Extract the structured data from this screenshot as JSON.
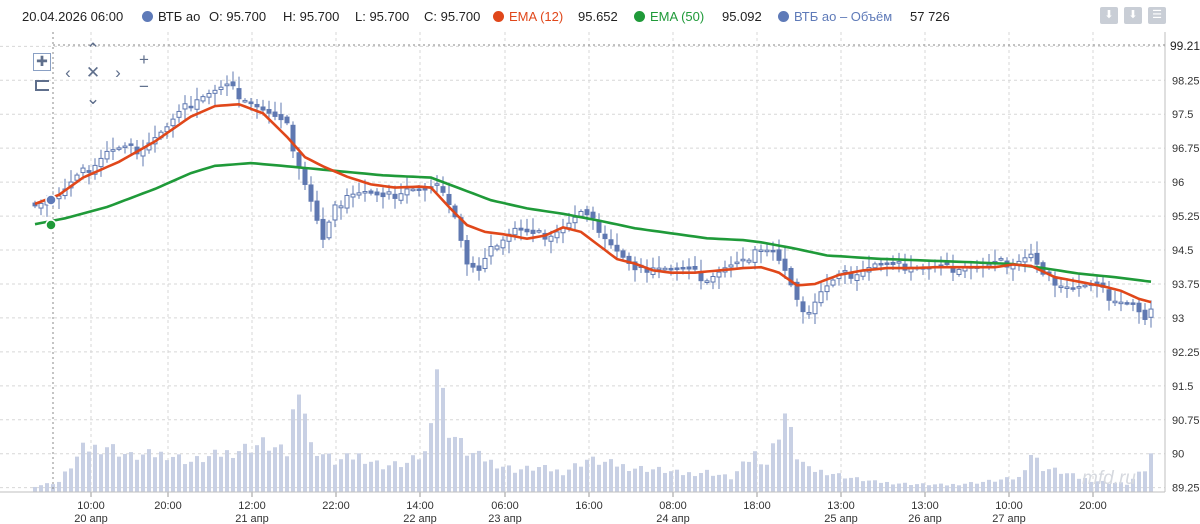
{
  "header": {
    "datetime": "20.04.2026 06:00",
    "instrument": "ВТБ ао",
    "o": "O: 95.700",
    "h": "H: 95.700",
    "l": "L: 95.700",
    "c": "C: 95.700",
    "ema12_label": "EMA (12)",
    "ema12_value": "95.652",
    "ema50_label": "EMA (50)",
    "ema50_value": "95.092",
    "volume_label": "ВТБ ао – Объём",
    "volume_value": "57 726"
  },
  "colors": {
    "candle": "#5f78b1",
    "ema12": "#e0471a",
    "ema50": "#1f9a39",
    "volume": "#c8d0e4",
    "grid": "#d7d7d7",
    "marker_blue": "#5e7ab8"
  },
  "icons": [
    "download-icon",
    "download-icon",
    "menu-icon",
    "crosshair-icon",
    "zoom-box-icon",
    "pan-up-icon",
    "pan-left-icon",
    "reset-icon",
    "pan-right-icon",
    "pan-down-icon",
    "zoom-in-icon",
    "zoom-out-icon"
  ],
  "watermark": "mfd.ru",
  "last_price_label": "99.21",
  "chart_data": {
    "type": "candlestick",
    "y_axis": {
      "min": 89.0,
      "max": 99.25,
      "ticks": [
        "89.25",
        "90",
        "90.75",
        "91.5",
        "92.25",
        "93",
        "93.75",
        "94.5",
        "95.25",
        "96",
        "96.75",
        "97.5",
        "98.25",
        "99"
      ]
    },
    "x_axis": {
      "ticks": [
        {
          "time": "10:00",
          "date": "20 апр"
        },
        {
          "time": "20:00",
          "date": ""
        },
        {
          "time": "12:00",
          "date": "21 апр"
        },
        {
          "time": "22:00",
          "date": ""
        },
        {
          "time": "14:00",
          "date": "22 апр"
        },
        {
          "time": "06:00",
          "date": "23 апр"
        },
        {
          "time": "16:00",
          "date": ""
        },
        {
          "time": "08:00",
          "date": "24 апр"
        },
        {
          "time": "18:00",
          "date": ""
        },
        {
          "time": "13:00",
          "date": "25 апр"
        },
        {
          "time": "13:00",
          "date": "26 апр"
        },
        {
          "time": "10:00",
          "date": "27 апр"
        },
        {
          "time": "20:00",
          "date": ""
        }
      ]
    },
    "series": [
      {
        "name": "ВТБ ао",
        "type": "candlestick",
        "anchors": [
          [
            0,
            95.6
          ],
          [
            4,
            95.7
          ],
          [
            8,
            96.2
          ],
          [
            12,
            96.7
          ],
          [
            17,
            96.75
          ],
          [
            22,
            97.2
          ],
          [
            27,
            97.9
          ],
          [
            32,
            98.1
          ],
          [
            35,
            97.9
          ],
          [
            39,
            97.5
          ],
          [
            42,
            97.2
          ],
          [
            44,
            96.4
          ],
          [
            46,
            95.6
          ],
          [
            48,
            94.7
          ],
          [
            50,
            95.4
          ],
          [
            52,
            95.8
          ],
          [
            55,
            95.8
          ],
          [
            58,
            95.6
          ],
          [
            62,
            95.9
          ],
          [
            65,
            95.8
          ],
          [
            68,
            95.9
          ],
          [
            70,
            95.3
          ],
          [
            72,
            94.2
          ],
          [
            74,
            94.0
          ],
          [
            77,
            94.7
          ],
          [
            80,
            95.0
          ],
          [
            83,
            94.8
          ],
          [
            86,
            94.9
          ],
          [
            89,
            95.1
          ],
          [
            91,
            95.3
          ],
          [
            94,
            95.0
          ],
          [
            97,
            94.5
          ],
          [
            100,
            94.0
          ],
          [
            103,
            94.2
          ],
          [
            106,
            94.1
          ],
          [
            109,
            94.0
          ],
          [
            112,
            93.9
          ],
          [
            115,
            94.1
          ],
          [
            118,
            94.2
          ],
          [
            120,
            94.6
          ],
          [
            123,
            94.5
          ],
          [
            125,
            94.0
          ],
          [
            127,
            93.3
          ],
          [
            129,
            93.2
          ],
          [
            131,
            93.6
          ],
          [
            134,
            93.9
          ],
          [
            137,
            94.05
          ],
          [
            140,
            94.2
          ],
          [
            143,
            94.1
          ],
          [
            146,
            94.2
          ],
          [
            149,
            94.1
          ],
          [
            152,
            94.1
          ],
          [
            155,
            94.2
          ],
          [
            158,
            94.1
          ],
          [
            161,
            94.2
          ],
          [
            164,
            94.3
          ],
          [
            166,
            94.4
          ],
          [
            168,
            93.9
          ],
          [
            170,
            93.85
          ],
          [
            173,
            93.7
          ],
          [
            176,
            93.7
          ],
          [
            179,
            93.5
          ],
          [
            181,
            93.4
          ],
          [
            183,
            93.3
          ],
          [
            185,
            92.9
          ],
          [
            186,
            93.1
          ]
        ]
      },
      {
        "name": "EMA (12)",
        "type": "line",
        "anchors": [
          [
            0,
            95.52
          ],
          [
            4,
            95.72
          ],
          [
            8,
            96.1
          ],
          [
            14,
            96.45
          ],
          [
            20,
            96.9
          ],
          [
            26,
            97.45
          ],
          [
            30,
            97.68
          ],
          [
            34,
            97.72
          ],
          [
            38,
            97.52
          ],
          [
            42,
            97.0
          ],
          [
            45,
            96.55
          ],
          [
            48,
            96.35
          ],
          [
            52,
            96.12
          ],
          [
            56,
            95.95
          ],
          [
            60,
            95.88
          ],
          [
            64,
            95.9
          ],
          [
            66,
            95.88
          ],
          [
            69,
            95.45
          ],
          [
            72,
            95.05
          ],
          [
            75,
            94.9
          ],
          [
            78,
            94.85
          ],
          [
            82,
            94.75
          ],
          [
            85,
            94.82
          ],
          [
            88,
            95.0
          ],
          [
            91,
            94.9
          ],
          [
            94,
            94.6
          ],
          [
            97,
            94.3
          ],
          [
            100,
            94.2
          ],
          [
            103,
            94.05
          ],
          [
            106,
            94.0
          ],
          [
            110,
            94.0
          ],
          [
            114,
            94.05
          ],
          [
            118,
            94.1
          ],
          [
            121,
            94.12
          ],
          [
            124,
            94.0
          ],
          [
            127,
            93.72
          ],
          [
            130,
            93.75
          ],
          [
            134,
            93.95
          ],
          [
            138,
            94.05
          ],
          [
            142,
            94.1
          ],
          [
            146,
            94.1
          ],
          [
            150,
            94.12
          ],
          [
            155,
            94.12
          ],
          [
            160,
            94.12
          ],
          [
            163,
            94.18
          ],
          [
            166,
            94.15
          ],
          [
            170,
            93.9
          ],
          [
            174,
            93.8
          ],
          [
            178,
            93.7
          ],
          [
            181,
            93.6
          ],
          [
            184,
            93.42
          ],
          [
            186,
            93.35
          ]
        ]
      },
      {
        "name": "EMA (50)",
        "type": "line",
        "anchors": [
          [
            0,
            95.07
          ],
          [
            5,
            95.2
          ],
          [
            12,
            95.45
          ],
          [
            20,
            95.85
          ],
          [
            26,
            96.2
          ],
          [
            30,
            96.36
          ],
          [
            36,
            96.42
          ],
          [
            42,
            96.35
          ],
          [
            50,
            96.25
          ],
          [
            58,
            96.15
          ],
          [
            66,
            96.1
          ],
          [
            70,
            95.9
          ],
          [
            76,
            95.6
          ],
          [
            82,
            95.42
          ],
          [
            88,
            95.3
          ],
          [
            94,
            95.15
          ],
          [
            100,
            94.98
          ],
          [
            106,
            94.87
          ],
          [
            112,
            94.76
          ],
          [
            118,
            94.72
          ],
          [
            121,
            94.67
          ],
          [
            126,
            94.55
          ],
          [
            132,
            94.38
          ],
          [
            140,
            94.31
          ],
          [
            148,
            94.27
          ],
          [
            156,
            94.23
          ],
          [
            163,
            94.19
          ],
          [
            168,
            94.1
          ],
          [
            174,
            93.98
          ],
          [
            180,
            93.9
          ],
          [
            186,
            93.8
          ]
        ]
      },
      {
        "name": "ВТБ ао – Объём",
        "type": "bar",
        "anchors": [
          [
            0,
            6
          ],
          [
            4,
            10
          ],
          [
            8,
            42
          ],
          [
            12,
            46
          ],
          [
            16,
            35
          ],
          [
            22,
            38
          ],
          [
            26,
            30
          ],
          [
            30,
            36
          ],
          [
            34,
            42
          ],
          [
            38,
            48
          ],
          [
            42,
            38
          ],
          [
            44,
            116
          ],
          [
            46,
            45
          ],
          [
            50,
            30
          ],
          [
            54,
            36
          ],
          [
            58,
            26
          ],
          [
            62,
            28
          ],
          [
            65,
            38
          ],
          [
            67,
            126
          ],
          [
            69,
            62
          ],
          [
            72,
            40
          ],
          [
            76,
            30
          ],
          [
            80,
            22
          ],
          [
            84,
            24
          ],
          [
            88,
            20
          ],
          [
            92,
            32
          ],
          [
            96,
            28
          ],
          [
            100,
            24
          ],
          [
            104,
            22
          ],
          [
            108,
            18
          ],
          [
            112,
            20
          ],
          [
            116,
            14
          ],
          [
            120,
            38
          ],
          [
            122,
            28
          ],
          [
            124,
            60
          ],
          [
            125,
            78
          ],
          [
            127,
            36
          ],
          [
            129,
            22
          ],
          [
            132,
            20
          ],
          [
            136,
            14
          ],
          [
            140,
            10
          ],
          [
            146,
            8
          ],
          [
            152,
            7
          ],
          [
            158,
            10
          ],
          [
            164,
            14
          ],
          [
            166,
            38
          ],
          [
            168,
            24
          ],
          [
            171,
            20
          ],
          [
            174,
            14
          ],
          [
            178,
            10
          ],
          [
            182,
            8
          ],
          [
            185,
            22
          ],
          [
            186,
            36
          ]
        ]
      }
    ]
  }
}
